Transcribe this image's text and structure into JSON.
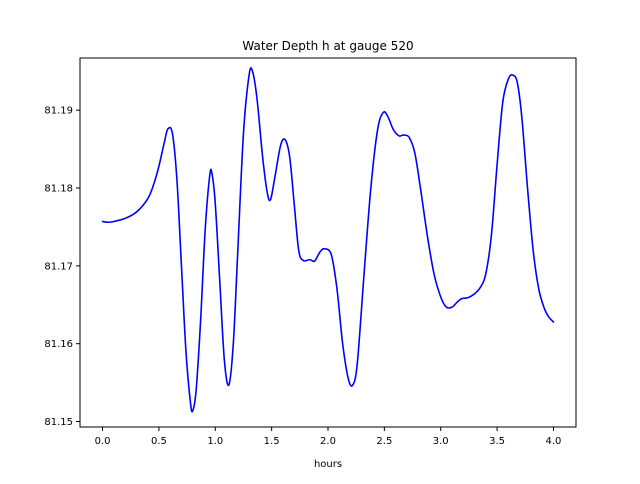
{
  "chart_data": {
    "type": "line",
    "title": "Water Depth h at gauge 520",
    "xlabel": "hours",
    "ylabel": "",
    "xlim": [
      -0.2,
      4.2
    ],
    "ylim": [
      81.1493,
      81.1967
    ],
    "xticks": [
      0.0,
      0.5,
      1.0,
      1.5,
      2.0,
      2.5,
      3.0,
      3.5,
      4.0
    ],
    "xtick_labels": [
      "0.0",
      "0.5",
      "1.0",
      "1.5",
      "2.0",
      "2.5",
      "3.0",
      "3.5",
      "4.0"
    ],
    "yticks": [
      81.15,
      81.16,
      81.17,
      81.18,
      81.19
    ],
    "ytick_labels": [
      "81.15",
      "81.16",
      "81.17",
      "81.18",
      "81.19"
    ],
    "grid": false,
    "line_color": "#0000ff",
    "series": [
      {
        "name": "",
        "color": "#0000ff",
        "points": [
          [
            0.0,
            81.1757
          ],
          [
            0.05,
            81.1756
          ],
          [
            0.1,
            81.1757
          ],
          [
            0.2,
            81.1761
          ],
          [
            0.3,
            81.1769
          ],
          [
            0.4,
            81.1786
          ],
          [
            0.45,
            81.1803
          ],
          [
            0.5,
            81.1828
          ],
          [
            0.55,
            81.186
          ],
          [
            0.58,
            81.1876
          ],
          [
            0.62,
            81.187
          ],
          [
            0.66,
            81.181
          ],
          [
            0.7,
            81.17
          ],
          [
            0.74,
            81.159
          ],
          [
            0.78,
            81.1524
          ],
          [
            0.8,
            81.1514
          ],
          [
            0.83,
            81.154
          ],
          [
            0.87,
            81.163
          ],
          [
            0.91,
            81.1745
          ],
          [
            0.95,
            81.1815
          ],
          [
            0.97,
            81.1819
          ],
          [
            1.0,
            81.178
          ],
          [
            1.04,
            81.168
          ],
          [
            1.08,
            81.158
          ],
          [
            1.12,
            81.1547
          ],
          [
            1.16,
            81.16
          ],
          [
            1.2,
            81.172
          ],
          [
            1.25,
            81.187
          ],
          [
            1.3,
            81.1945
          ],
          [
            1.33,
            81.195
          ],
          [
            1.37,
            81.1915
          ],
          [
            1.42,
            81.184
          ],
          [
            1.46,
            81.1795
          ],
          [
            1.49,
            81.1785
          ],
          [
            1.53,
            81.1815
          ],
          [
            1.58,
            81.1855
          ],
          [
            1.62,
            81.1862
          ],
          [
            1.66,
            81.184
          ],
          [
            1.7,
            81.178
          ],
          [
            1.74,
            81.172
          ],
          [
            1.78,
            81.1707
          ],
          [
            1.84,
            81.1708
          ],
          [
            1.88,
            81.1706
          ],
          [
            1.93,
            81.1718
          ],
          [
            1.97,
            81.1722
          ],
          [
            2.03,
            81.1714
          ],
          [
            2.08,
            81.167
          ],
          [
            2.13,
            81.16
          ],
          [
            2.18,
            81.1555
          ],
          [
            2.22,
            81.1547
          ],
          [
            2.26,
            81.1575
          ],
          [
            2.32,
            81.169
          ],
          [
            2.38,
            81.18
          ],
          [
            2.44,
            81.1875
          ],
          [
            2.49,
            81.1897
          ],
          [
            2.53,
            81.1892
          ],
          [
            2.58,
            81.1875
          ],
          [
            2.63,
            81.1867
          ],
          [
            2.67,
            81.1868
          ],
          [
            2.72,
            81.1865
          ],
          [
            2.77,
            81.1845
          ],
          [
            2.82,
            81.18
          ],
          [
            2.88,
            81.174
          ],
          [
            2.94,
            81.169
          ],
          [
            3.0,
            81.166
          ],
          [
            3.05,
            81.1647
          ],
          [
            3.1,
            81.1647
          ],
          [
            3.15,
            81.1654
          ],
          [
            3.19,
            81.1658
          ],
          [
            3.24,
            81.1659
          ],
          [
            3.29,
            81.1663
          ],
          [
            3.35,
            81.1672
          ],
          [
            3.4,
            81.169
          ],
          [
            3.45,
            81.174
          ],
          [
            3.5,
            81.183
          ],
          [
            3.55,
            81.191
          ],
          [
            3.6,
            81.194
          ],
          [
            3.64,
            81.1945
          ],
          [
            3.68,
            81.1935
          ],
          [
            3.72,
            81.189
          ],
          [
            3.77,
            81.18
          ],
          [
            3.82,
            81.172
          ],
          [
            3.87,
            81.167
          ],
          [
            3.92,
            81.1645
          ],
          [
            3.96,
            81.1634
          ],
          [
            4.0,
            81.1628
          ]
        ]
      }
    ]
  }
}
